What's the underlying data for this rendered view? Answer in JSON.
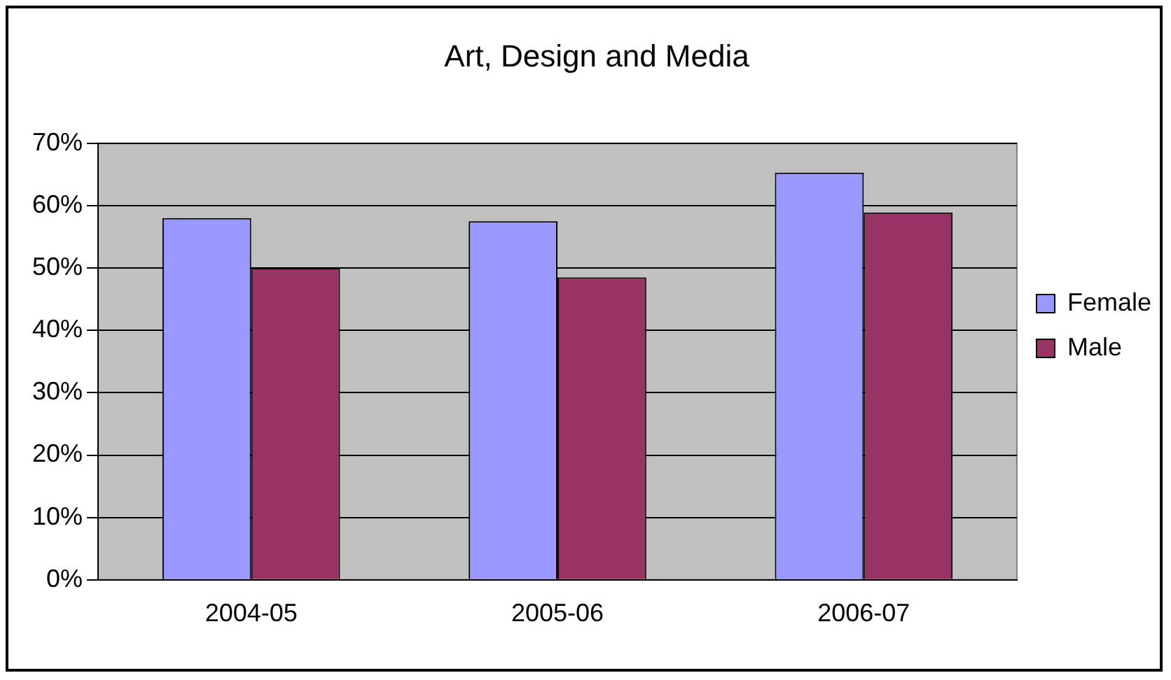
{
  "chart_data": {
    "type": "bar",
    "title": "Art, Design and Media",
    "categories": [
      "2004-05",
      "2005-06",
      "2006-07"
    ],
    "series": [
      {
        "name": "Female",
        "color": "#9999ff",
        "values": [
          58,
          57.5,
          65.3
        ]
      },
      {
        "name": "Male",
        "color": "#993366",
        "values": [
          50,
          48.5,
          58.9
        ]
      }
    ],
    "ylim": [
      0,
      70
    ],
    "yticks": [
      {
        "value": 0,
        "label": "0%"
      },
      {
        "value": 10,
        "label": "10%"
      },
      {
        "value": 20,
        "label": "20%"
      },
      {
        "value": 30,
        "label": "30%"
      },
      {
        "value": 40,
        "label": "40%"
      },
      {
        "value": 50,
        "label": "50%"
      },
      {
        "value": 60,
        "label": "60%"
      },
      {
        "value": 70,
        "label": "70%"
      }
    ],
    "grid": "y",
    "legend": "right"
  }
}
